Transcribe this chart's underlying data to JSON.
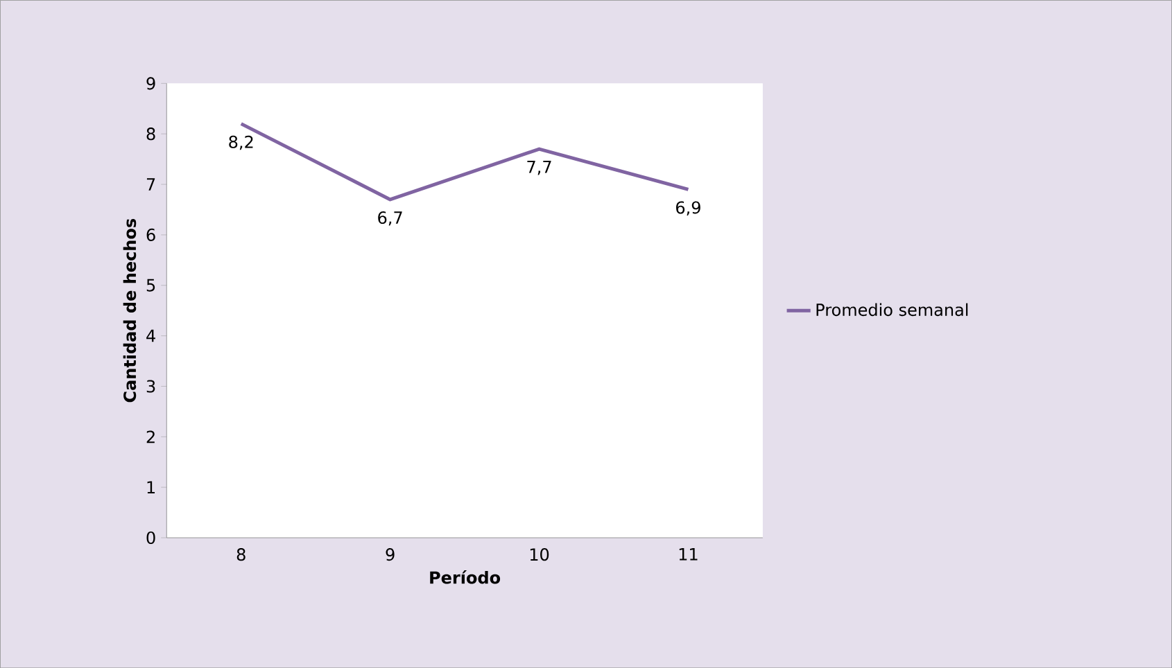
{
  "chart_data": {
    "type": "line",
    "xlabel": "Período",
    "ylabel": "Cantidad de hechos",
    "categories": [
      "8",
      "9",
      "10",
      "11"
    ],
    "series": [
      {
        "name": "Promedio semanal",
        "color": "#8064a2",
        "values": [
          8.2,
          6.7,
          7.7,
          6.9
        ],
        "value_labels": [
          "8,2",
          "6,7",
          "7,7",
          "6,9"
        ]
      }
    ],
    "ylim": [
      0,
      9
    ],
    "yticks": [
      0,
      1,
      2,
      3,
      4,
      5,
      6,
      7,
      8,
      9
    ],
    "grid": false,
    "legend": "right",
    "marker": "none",
    "line_style": "solid"
  }
}
